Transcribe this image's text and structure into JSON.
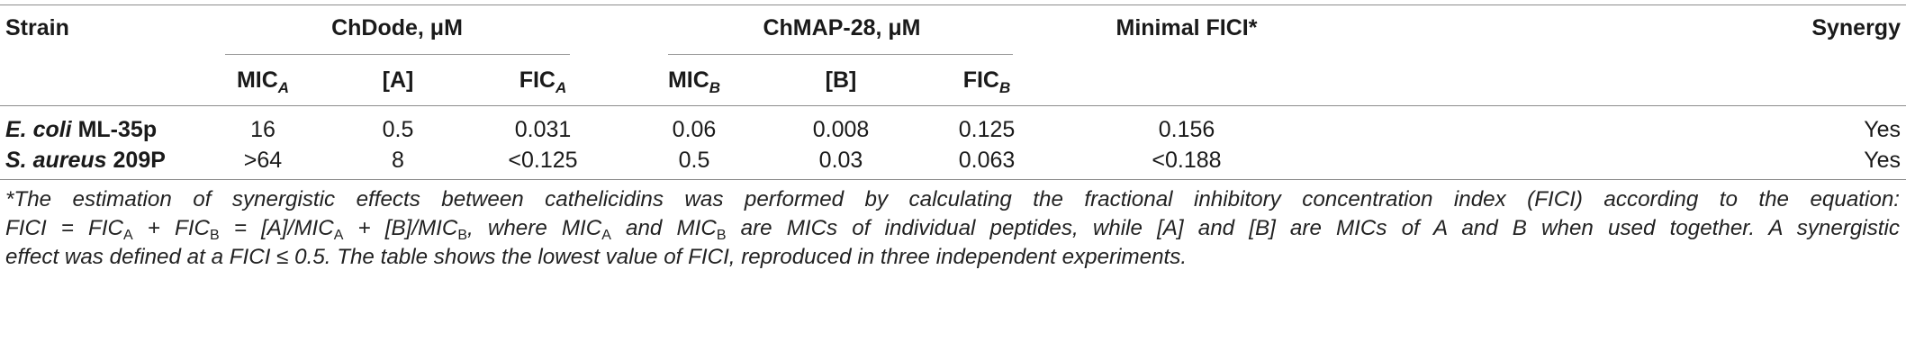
{
  "table": {
    "headers": {
      "strain": "Strain",
      "group_a": "ChDode, μM",
      "group_b": "ChMAP-28, μM",
      "minimal_fici": "Minimal FICI*",
      "synergy": "Synergy"
    },
    "subheaders": {
      "mic_a": "MIC",
      "mic_a_sub": "A",
      "a": "[A]",
      "fic_a": "FIC",
      "fic_a_sub": "A",
      "mic_b": "MIC",
      "mic_b_sub": "B",
      "b": "[B]",
      "fic_b": "FIC",
      "fic_b_sub": "B"
    },
    "rows": [
      {
        "strain_italic": "E. coli",
        "strain_rest": " ML-35p",
        "mic_a": "16",
        "a": "0.5",
        "fic_a": "0.031",
        "mic_b": "0.06",
        "b": "0.008",
        "fic_b": "0.125",
        "fici": "0.156",
        "synergy": "Yes"
      },
      {
        "strain_italic": "S. aureus",
        "strain_rest": " 209P",
        "mic_a": ">64",
        "a": "8",
        "fic_a": "<0.125",
        "mic_b": "0.5",
        "b": "0.03",
        "fic_b": "0.063",
        "fici": "<0.188",
        "synergy": "Yes"
      }
    ]
  },
  "footnote": {
    "line1": "*The estimation of synergistic effects between cathelicidins was performed by calculating the fractional inhibitory concentration index (FICI) according to the equation:",
    "line2_a": "FICI = FIC",
    "line2_a_sub": "A",
    "line2_b": " + FIC",
    "line2_b_sub": "B",
    "line2_c": " = [A]/MIC",
    "line2_c_sub": "A",
    "line2_d": " + [B]/MIC",
    "line2_d_sub": "B",
    "line2_e": ", where MIC",
    "line2_e_sub": "A",
    "line2_f": " and MIC",
    "line2_f_sub": "B",
    "line2_g": " are MICs of individual peptides, while [A] and [B] are MICs of A and B when used together. A synergistic",
    "line3": "effect was defined at a FICI ≤ 0.5. The table shows the lowest value of FICI, reproduced in three independent experiments."
  }
}
